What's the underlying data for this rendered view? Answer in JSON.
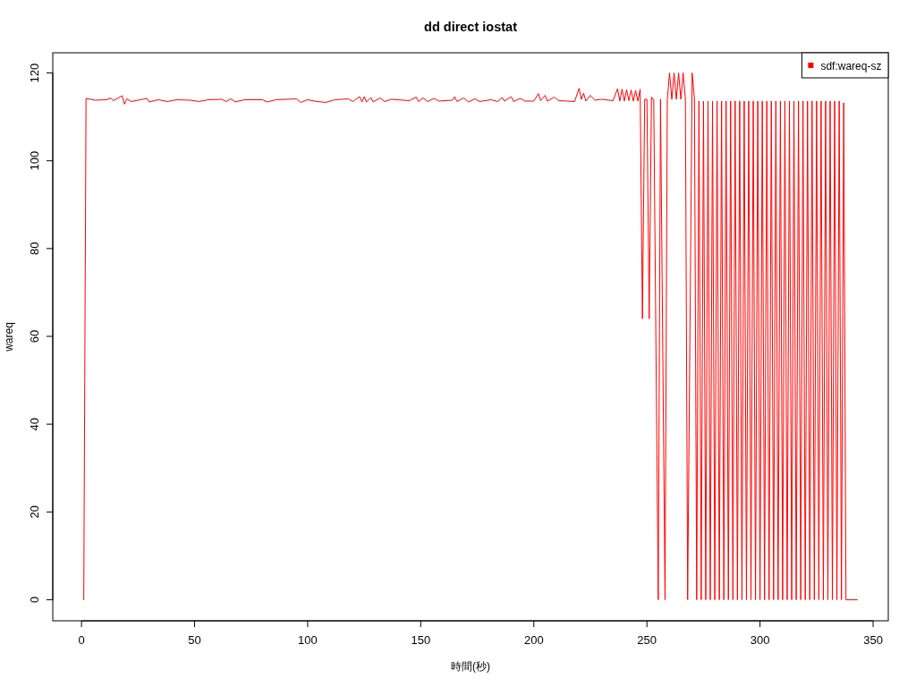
{
  "chart_data": {
    "type": "line",
    "title": "dd direct iostat",
    "xlabel": "時間(秒)",
    "ylabel": "wareq",
    "x": [
      1,
      2,
      6,
      11,
      13,
      14,
      18,
      19,
      20,
      22,
      26,
      29,
      30,
      34,
      38,
      42,
      48,
      52,
      56,
      62,
      64,
      66,
      68,
      72,
      80,
      82,
      86,
      95,
      97,
      100,
      104,
      108,
      112,
      118,
      120,
      123,
      124,
      125,
      126,
      128,
      129,
      132,
      134,
      137,
      145,
      148,
      149,
      151,
      153,
      156,
      158,
      164,
      165,
      166,
      169,
      171,
      174,
      176,
      181,
      184,
      186,
      187,
      190,
      191,
      194,
      196,
      200,
      202,
      203,
      205,
      206,
      209,
      211,
      218,
      220,
      221,
      222,
      223,
      225,
      227,
      230,
      235,
      237,
      238,
      239,
      240,
      241,
      242,
      243,
      244,
      245,
      246,
      247,
      248,
      249,
      250,
      251,
      252,
      253,
      255,
      256,
      258,
      259,
      260,
      261,
      262,
      263,
      264,
      265,
      266,
      267,
      268,
      270,
      271,
      272,
      273,
      274,
      275,
      276,
      277,
      278,
      279,
      280,
      281,
      282,
      283,
      284,
      285,
      286,
      287,
      288,
      289,
      290,
      291,
      292,
      293,
      294,
      295,
      296,
      297,
      298,
      299,
      300,
      301,
      302,
      303,
      304,
      305,
      306,
      307,
      308,
      309,
      310,
      311,
      312,
      313,
      314,
      315,
      316,
      317,
      318,
      319,
      320,
      321,
      322,
      323,
      324,
      325,
      326,
      327,
      328,
      329,
      330,
      331,
      332,
      333,
      334,
      335,
      336,
      337,
      338,
      343
    ],
    "series": [
      {
        "name": "sdf:wareq-sz",
        "color": "#ff0000",
        "values": [
          0,
          114.2,
          113.8,
          113.9,
          114.3,
          113.7,
          114.8,
          112.9,
          114.1,
          113.5,
          113.9,
          114.2,
          113.4,
          113.9,
          113.5,
          113.9,
          113.8,
          113.5,
          113.9,
          114.0,
          113.5,
          114.1,
          113.4,
          113.9,
          113.9,
          113.4,
          113.9,
          114.1,
          113.3,
          113.9,
          113.5,
          113.3,
          113.9,
          114.1,
          113.5,
          114.6,
          113.4,
          114.6,
          113.4,
          114.4,
          113.4,
          114.3,
          113.5,
          114.0,
          113.7,
          114.5,
          113.5,
          114.3,
          113.5,
          114.2,
          113.6,
          113.8,
          114.6,
          113.5,
          114.3,
          113.4,
          114.1,
          113.5,
          113.9,
          113.5,
          114.4,
          113.6,
          114.6,
          113.5,
          114.2,
          113.6,
          113.6,
          115.3,
          113.7,
          114.9,
          113.6,
          114.5,
          113.7,
          113.5,
          116.5,
          114.0,
          115.4,
          113.6,
          114.9,
          113.8,
          114.0,
          113.7,
          116.4,
          113.6,
          116.3,
          113.6,
          116.2,
          113.7,
          116.1,
          113.6,
          116.0,
          113.6,
          116.3,
          64,
          114,
          114,
          64,
          114.5,
          113.8,
          0,
          114,
          0,
          114,
          120,
          114,
          120,
          114,
          120,
          114,
          120,
          114,
          0,
          120,
          114,
          0,
          113.6,
          0,
          113.6,
          0,
          113.6,
          0,
          113.6,
          0,
          113.6,
          0,
          113.6,
          0,
          113.6,
          0,
          113.6,
          0,
          113.6,
          0,
          113.6,
          0,
          113.6,
          0,
          113.6,
          0,
          113.6,
          0,
          113.6,
          0,
          113.6,
          0,
          113.6,
          0,
          113.6,
          0,
          113.6,
          0,
          113.6,
          0,
          113.6,
          0,
          113.6,
          0,
          113.6,
          0,
          113.6,
          0,
          113.6,
          0,
          113.6,
          0,
          113.6,
          0,
          113.6,
          0,
          113.6,
          0,
          113.6,
          0,
          113.6,
          0,
          113.6,
          0,
          113.6,
          0,
          113.2,
          0,
          0
        ]
      }
    ],
    "xlim": [
      -12.7,
      356.7
    ],
    "ylim": [
      -4.8,
      124.6
    ],
    "xticks": [
      0,
      50,
      100,
      150,
      200,
      250,
      300,
      350
    ],
    "yticks": [
      0,
      20,
      40,
      60,
      80,
      100,
      120
    ],
    "legend": "top right",
    "line_style": "solid"
  }
}
